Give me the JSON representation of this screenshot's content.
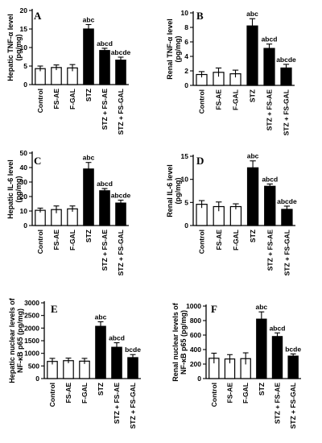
{
  "chart_data": [
    {
      "type": "bar",
      "panel": "A",
      "ylabel": [
        "Hepatic TNF-α level",
        "(pg/mg)"
      ],
      "categories": [
        "Control",
        "FS-AE",
        "F-GAL",
        "STZ",
        "STZ + FS-AE",
        "STZ + FS-GAL"
      ],
      "values": [
        4.3,
        4.6,
        4.5,
        15.0,
        9.2,
        6.6
      ],
      "errors": [
        0.7,
        0.7,
        0.9,
        1.2,
        0.6,
        0.8
      ],
      "significance": [
        "",
        "",
        "",
        "abc",
        "abcd",
        "abcde"
      ],
      "ylim": [
        0,
        20
      ],
      "yticks": [
        0,
        5,
        10,
        15,
        20
      ],
      "bar_colors": [
        "#ffffff",
        "#ffffff",
        "#ffffff",
        "#000000",
        "#000000",
        "#000000"
      ]
    },
    {
      "type": "bar",
      "panel": "B",
      "ylabel": [
        "Renal TNF-α level",
        "(pg/mg)"
      ],
      "categories": [
        "Control",
        "FS-AE",
        "F-GAL",
        "STZ",
        "STZ + FS-AE",
        "STZ + FS-GAL"
      ],
      "values": [
        1.5,
        1.8,
        1.6,
        8.2,
        5.1,
        2.4
      ],
      "errors": [
        0.4,
        0.6,
        0.5,
        1.0,
        0.6,
        0.5
      ],
      "significance": [
        "",
        "",
        "",
        "abc",
        "abcd",
        "abcde"
      ],
      "ylim": [
        0,
        10
      ],
      "yticks": [
        0,
        2,
        4,
        6,
        8,
        10
      ],
      "bar_colors": [
        "#ffffff",
        "#ffffff",
        "#ffffff",
        "#000000",
        "#000000",
        "#000000"
      ]
    },
    {
      "type": "bar",
      "panel": "C",
      "ylabel": [
        "Hepatic IL-6 level",
        "(pg/mg)"
      ],
      "categories": [
        "Control",
        "FS-AE",
        "F-GAL",
        "STZ",
        "STZ + FS-AE",
        "STZ + FS-GAL"
      ],
      "values": [
        10.5,
        11.0,
        11.5,
        39.0,
        24.0,
        15.5
      ],
      "errors": [
        1.5,
        2.5,
        2.0,
        4.5,
        1.5,
        2.0
      ],
      "significance": [
        "",
        "",
        "",
        "abc",
        "abcd",
        "abcde"
      ],
      "ylim": [
        0,
        50
      ],
      "yticks": [
        0,
        10,
        20,
        30,
        40,
        50
      ],
      "bar_colors": [
        "#ffffff",
        "#ffffff",
        "#ffffff",
        "#000000",
        "#000000",
        "#000000"
      ]
    },
    {
      "type": "bar",
      "panel": "D",
      "ylabel": [
        "Renal IL-6 level",
        "(pg/mg)"
      ],
      "categories": [
        "Control",
        "FS-AE",
        "F-GAL",
        "STZ",
        "STZ + FS-AE",
        "STZ + FS-GAL"
      ],
      "values": [
        4.6,
        4.1,
        4.1,
        12.5,
        8.5,
        3.5
      ],
      "errors": [
        0.8,
        1.0,
        0.6,
        1.5,
        0.5,
        0.7
      ],
      "significance": [
        "",
        "",
        "",
        "abc",
        "abcd",
        "abcde"
      ],
      "ylim": [
        0,
        15
      ],
      "yticks": [
        0,
        5,
        10,
        15
      ],
      "bar_colors": [
        "#ffffff",
        "#ffffff",
        "#ffffff",
        "#000000",
        "#000000",
        "#000000"
      ]
    },
    {
      "type": "bar",
      "panel": "E",
      "ylabel": [
        "Hepatic nuclear levels of",
        "NF-κB p65 (pg/mg)"
      ],
      "categories": [
        "Control",
        "FS-AE",
        "F-GAL",
        "STZ",
        "STZ + FS-AE",
        "STZ + FS-GAL"
      ],
      "values": [
        680,
        710,
        690,
        2070,
        1240,
        830
      ],
      "errors": [
        120,
        100,
        110,
        180,
        180,
        120
      ],
      "significance": [
        "",
        "",
        "",
        "abc",
        "abcd",
        "bcde"
      ],
      "ylim": [
        0,
        3000
      ],
      "yticks": [
        0,
        500,
        1000,
        1500,
        2000,
        2500,
        3000
      ],
      "bar_colors": [
        "#ffffff",
        "#ffffff",
        "#ffffff",
        "#000000",
        "#000000",
        "#000000"
      ]
    },
    {
      "type": "bar",
      "panel": "F",
      "ylabel": [
        "Renal nuclear levels of",
        "NF-κB p65 (pg/mg)"
      ],
      "categories": [
        "Control",
        "FS-AE",
        "F-GAL",
        "STZ",
        "STZ + FS-AE",
        "STZ + FS-GAL"
      ],
      "values": [
        280,
        270,
        275,
        820,
        580,
        310
      ],
      "errors": [
        70,
        60,
        80,
        100,
        50,
        30
      ],
      "significance": [
        "",
        "",
        "",
        "abc",
        "abcd",
        "bcde"
      ],
      "ylim": [
        0,
        1000
      ],
      "yticks": [
        0,
        200,
        400,
        600,
        800,
        1000
      ],
      "bar_colors": [
        "#ffffff",
        "#ffffff",
        "#ffffff",
        "#000000",
        "#000000",
        "#000000"
      ]
    }
  ]
}
